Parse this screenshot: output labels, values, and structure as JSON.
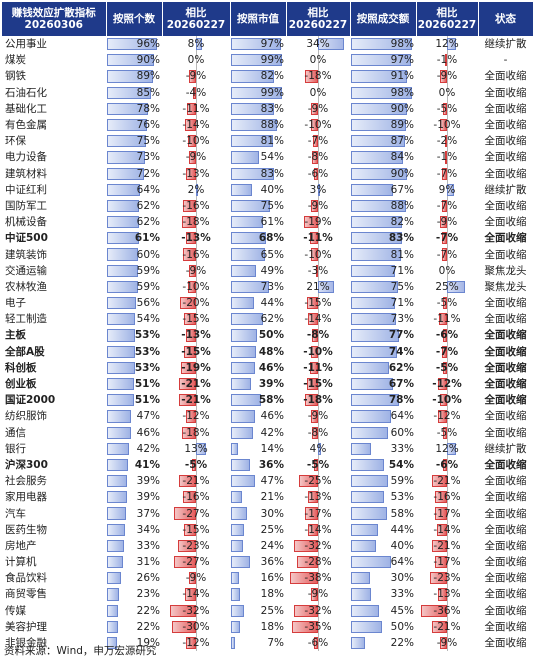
{
  "headers": [
    "赚钱效应扩散指标\n20260306",
    "按照个数",
    "相比\n20260227",
    "按照市值",
    "相比\n20260227",
    "按照成交额",
    "相比\n20260227",
    "状态"
  ],
  "rows": [
    {
      "name": "公用事业",
      "count": "96%",
      "c1": "8%",
      "mcap": "97%",
      "c2": "34%",
      "vol": "98%",
      "c3": "12%",
      "status": "继续扩散",
      "bold": false
    },
    {
      "name": "煤炭",
      "count": "90%",
      "c1": "0%",
      "mcap": "99%",
      "c2": "0%",
      "vol": "97%",
      "c3": "-1%",
      "status": "-",
      "bold": false
    },
    {
      "name": "钢铁",
      "count": "89%",
      "c1": "-9%",
      "mcap": "82%",
      "c2": "-18%",
      "vol": "91%",
      "c3": "-9%",
      "status": "全面收缩",
      "bold": false
    },
    {
      "name": "石油石化",
      "count": "85%",
      "c1": "-4%",
      "mcap": "99%",
      "c2": "0%",
      "vol": "98%",
      "c3": "0%",
      "status": "全面收缩",
      "bold": false
    },
    {
      "name": "基础化工",
      "count": "78%",
      "c1": "-11%",
      "mcap": "83%",
      "c2": "-9%",
      "vol": "90%",
      "c3": "-5%",
      "status": "全面收缩",
      "bold": false
    },
    {
      "name": "有色金属",
      "count": "76%",
      "c1": "-14%",
      "mcap": "88%",
      "c2": "-10%",
      "vol": "89%",
      "c3": "-10%",
      "status": "全面收缩",
      "bold": false
    },
    {
      "name": "环保",
      "count": "75%",
      "c1": "-10%",
      "mcap": "81%",
      "c2": "-7%",
      "vol": "87%",
      "c3": "-2%",
      "status": "全面收缩",
      "bold": false
    },
    {
      "name": "电力设备",
      "count": "73%",
      "c1": "-9%",
      "mcap": "54%",
      "c2": "-8%",
      "vol": "84%",
      "c3": "-1%",
      "status": "全面收缩",
      "bold": false
    },
    {
      "name": "建筑材料",
      "count": "72%",
      "c1": "-13%",
      "mcap": "83%",
      "c2": "-6%",
      "vol": "90%",
      "c3": "-7%",
      "status": "全面收缩",
      "bold": false
    },
    {
      "name": "中证红利",
      "count": "64%",
      "c1": "2%",
      "mcap": "40%",
      "c2": "3%",
      "vol": "67%",
      "c3": "9%",
      "status": "继续扩散",
      "bold": false
    },
    {
      "name": "国防军工",
      "count": "62%",
      "c1": "-16%",
      "mcap": "75%",
      "c2": "-9%",
      "vol": "88%",
      "c3": "-7%",
      "status": "全面收缩",
      "bold": false
    },
    {
      "name": "机械设备",
      "count": "62%",
      "c1": "-18%",
      "mcap": "61%",
      "c2": "-19%",
      "vol": "82%",
      "c3": "-9%",
      "status": "全面收缩",
      "bold": false
    },
    {
      "name": "中证500",
      "count": "61%",
      "c1": "-13%",
      "mcap": "68%",
      "c2": "-11%",
      "vol": "83%",
      "c3": "-7%",
      "status": "全面收缩",
      "bold": true
    },
    {
      "name": "建筑装饰",
      "count": "60%",
      "c1": "-16%",
      "mcap": "65%",
      "c2": "-10%",
      "vol": "81%",
      "c3": "-7%",
      "status": "全面收缩",
      "bold": false
    },
    {
      "name": "交通运输",
      "count": "59%",
      "c1": "-9%",
      "mcap": "49%",
      "c2": "-3%",
      "vol": "71%",
      "c3": "0%",
      "status": "聚焦龙头",
      "bold": false
    },
    {
      "name": "农林牧渔",
      "count": "59%",
      "c1": "-10%",
      "mcap": "73%",
      "c2": "21%",
      "vol": "75%",
      "c3": "25%",
      "status": "聚焦龙头",
      "bold": false
    },
    {
      "name": "电子",
      "count": "56%",
      "c1": "-20%",
      "mcap": "44%",
      "c2": "-15%",
      "vol": "71%",
      "c3": "-5%",
      "status": "全面收缩",
      "bold": false
    },
    {
      "name": "轻工制造",
      "count": "54%",
      "c1": "-15%",
      "mcap": "62%",
      "c2": "-14%",
      "vol": "73%",
      "c3": "-11%",
      "status": "全面收缩",
      "bold": false
    },
    {
      "name": "主板",
      "count": "53%",
      "c1": "-13%",
      "mcap": "50%",
      "c2": "-8%",
      "vol": "77%",
      "c3": "-6%",
      "status": "全面收缩",
      "bold": true
    },
    {
      "name": "全部A股",
      "count": "53%",
      "c1": "-15%",
      "mcap": "48%",
      "c2": "-10%",
      "vol": "74%",
      "c3": "-7%",
      "status": "全面收缩",
      "bold": true
    },
    {
      "name": "科创板",
      "count": "53%",
      "c1": "-19%",
      "mcap": "46%",
      "c2": "-11%",
      "vol": "62%",
      "c3": "-5%",
      "status": "全面收缩",
      "bold": true
    },
    {
      "name": "创业板",
      "count": "51%",
      "c1": "-21%",
      "mcap": "39%",
      "c2": "-15%",
      "vol": "67%",
      "c3": "-12%",
      "status": "全面收缩",
      "bold": true
    },
    {
      "name": "国证2000",
      "count": "51%",
      "c1": "-21%",
      "mcap": "58%",
      "c2": "-18%",
      "vol": "78%",
      "c3": "-10%",
      "status": "全面收缩",
      "bold": true
    },
    {
      "name": "纺织服饰",
      "count": "47%",
      "c1": "-12%",
      "mcap": "46%",
      "c2": "-9%",
      "vol": "64%",
      "c3": "-12%",
      "status": "全面收缩",
      "bold": false
    },
    {
      "name": "通信",
      "count": "46%",
      "c1": "-18%",
      "mcap": "42%",
      "c2": "-8%",
      "vol": "60%",
      "c3": "-5%",
      "status": "全面收缩",
      "bold": false
    },
    {
      "name": "银行",
      "count": "42%",
      "c1": "13%",
      "mcap": "14%",
      "c2": "4%",
      "vol": "33%",
      "c3": "12%",
      "status": "继续扩散",
      "bold": false
    },
    {
      "name": "沪深300",
      "count": "41%",
      "c1": "-5%",
      "mcap": "36%",
      "c2": "-5%",
      "vol": "54%",
      "c3": "-6%",
      "status": "全面收缩",
      "bold": true
    },
    {
      "name": "社会服务",
      "count": "39%",
      "c1": "-21%",
      "mcap": "47%",
      "c2": "-25%",
      "vol": "59%",
      "c3": "-21%",
      "status": "全面收缩",
      "bold": false
    },
    {
      "name": "家用电器",
      "count": "39%",
      "c1": "-16%",
      "mcap": "21%",
      "c2": "-13%",
      "vol": "53%",
      "c3": "-16%",
      "status": "全面收缩",
      "bold": false
    },
    {
      "name": "汽车",
      "count": "37%",
      "c1": "-27%",
      "mcap": "30%",
      "c2": "-17%",
      "vol": "58%",
      "c3": "-17%",
      "status": "全面收缩",
      "bold": false
    },
    {
      "name": "医药生物",
      "count": "34%",
      "c1": "-15%",
      "mcap": "25%",
      "c2": "-14%",
      "vol": "44%",
      "c3": "-14%",
      "status": "全面收缩",
      "bold": false
    },
    {
      "name": "房地产",
      "count": "33%",
      "c1": "-23%",
      "mcap": "24%",
      "c2": "-32%",
      "vol": "40%",
      "c3": "-21%",
      "status": "全面收缩",
      "bold": false
    },
    {
      "name": "计算机",
      "count": "31%",
      "c1": "-27%",
      "mcap": "36%",
      "c2": "-28%",
      "vol": "64%",
      "c3": "-17%",
      "status": "全面收缩",
      "bold": false
    },
    {
      "name": "食品饮料",
      "count": "26%",
      "c1": "-9%",
      "mcap": "16%",
      "c2": "-38%",
      "vol": "30%",
      "c3": "-23%",
      "status": "全面收缩",
      "bold": false
    },
    {
      "name": "商贸零售",
      "count": "23%",
      "c1": "-14%",
      "mcap": "18%",
      "c2": "-9%",
      "vol": "33%",
      "c3": "-13%",
      "status": "全面收缩",
      "bold": false
    },
    {
      "name": "传媒",
      "count": "22%",
      "c1": "-32%",
      "mcap": "25%",
      "c2": "-32%",
      "vol": "45%",
      "c3": "-36%",
      "status": "全面收缩",
      "bold": false
    },
    {
      "name": "美容护理",
      "count": "22%",
      "c1": "-30%",
      "mcap": "18%",
      "c2": "-35%",
      "vol": "50%",
      "c3": "-21%",
      "status": "全面收缩",
      "bold": false
    },
    {
      "name": "非银金融",
      "count": "19%",
      "c1": "-12%",
      "mcap": "7%",
      "c2": "-6%",
      "vol": "22%",
      "c3": "-9%",
      "status": "全面收缩",
      "bold": false
    }
  ],
  "source": "资料来源：Wind，申万宏源研究",
  "colors": {
    "header": "#1f3a8a",
    "bar_blue": "#6b86cf",
    "bar_red": "#d53c3c"
  }
}
